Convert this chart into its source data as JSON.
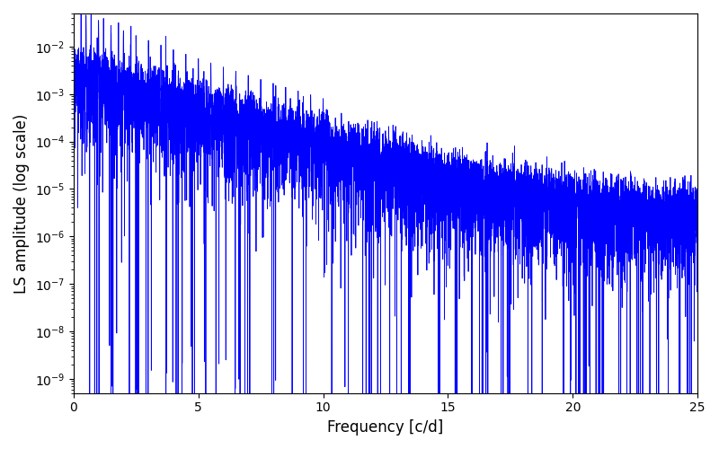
{
  "xlabel": "Frequency [c/d]",
  "ylabel": "LS amplitude (log scale)",
  "xlim": [
    0,
    25
  ],
  "ylim": [
    5e-10,
    0.05
  ],
  "line_color": "#0000ff",
  "line_width": 0.6,
  "yscale": "log",
  "freq_max": 25.0,
  "n_points": 8000,
  "seed": 7,
  "background_color": "#ffffff",
  "figsize": [
    8.0,
    5.0
  ],
  "dpi": 100
}
